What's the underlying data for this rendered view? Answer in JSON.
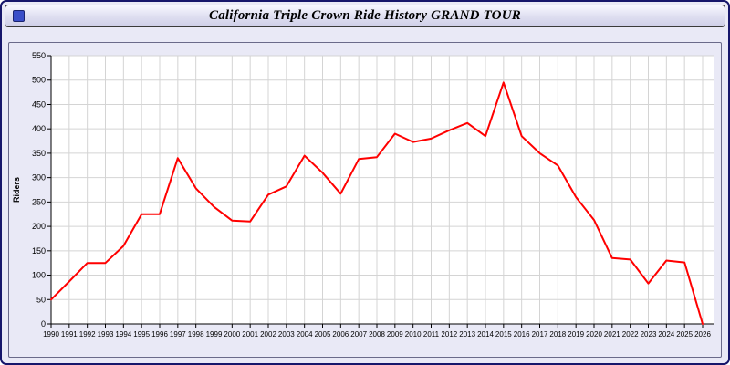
{
  "window": {
    "title": "California Triple Crown Ride History GRAND TOUR",
    "icon": "window-icon"
  },
  "colors": {
    "line": "#ff0000",
    "background": "#e9e9f6",
    "plot_background": "#ffffff",
    "grid": "#d4d4d4",
    "axis": "#000000",
    "window_border": "#16166b"
  },
  "chart_data": {
    "type": "line",
    "title": "California Triple Crown Ride History GRAND TOUR",
    "xlabel": "",
    "ylabel": "Riders",
    "x": [
      1990,
      1991,
      1992,
      1993,
      1994,
      1995,
      1996,
      1997,
      1998,
      1999,
      2000,
      2001,
      2002,
      2003,
      2004,
      2005,
      2006,
      2007,
      2008,
      2009,
      2010,
      2011,
      2012,
      2013,
      2014,
      2015,
      2016,
      2017,
      2018,
      2019,
      2020,
      2021,
      2022,
      2023,
      2024,
      2025,
      2026
    ],
    "values": [
      50,
      87,
      125,
      125,
      160,
      225,
      225,
      340,
      278,
      240,
      212,
      210,
      265,
      282,
      345,
      310,
      267,
      338,
      342,
      390,
      373,
      380,
      397,
      412,
      385,
      495,
      385,
      350,
      325,
      260,
      213,
      135,
      132,
      83,
      130,
      126,
      0
    ],
    "ylim": [
      0,
      550
    ],
    "yticks": [
      0,
      50,
      100,
      150,
      200,
      250,
      300,
      350,
      400,
      450,
      500,
      550
    ],
    "grid": true,
    "legend": "none",
    "line_color": "#ff0000",
    "series_name": "Riders"
  }
}
